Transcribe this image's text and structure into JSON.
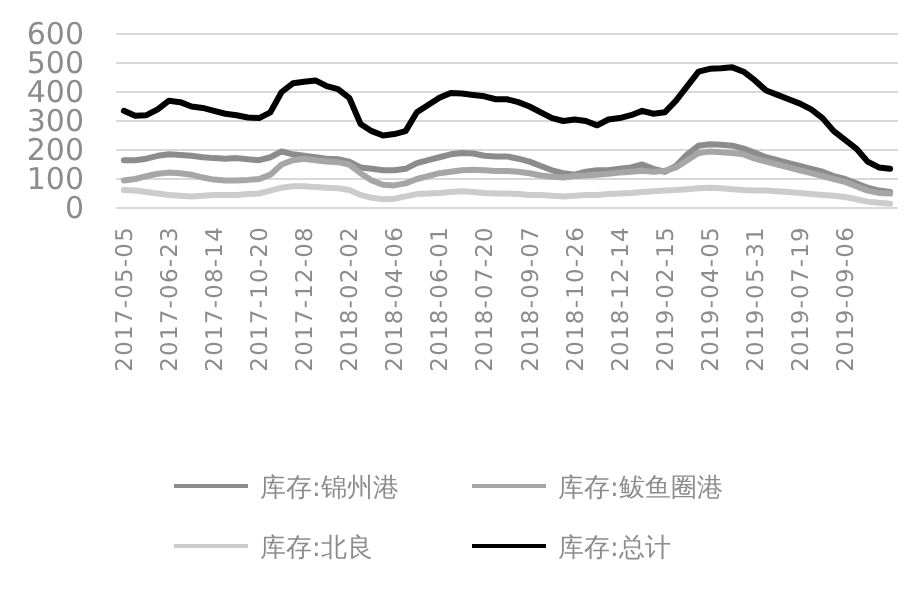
{
  "chart_data": {
    "type": "line",
    "categories": [
      "2017-05-05",
      null,
      null,
      null,
      "2017-06-23",
      null,
      null,
      null,
      "2017-08-14",
      null,
      null,
      null,
      "2017-10-20",
      null,
      null,
      null,
      "2017-12-08",
      null,
      null,
      null,
      "2018-02-02",
      null,
      null,
      null,
      "2018-04-06",
      null,
      null,
      null,
      "2018-06-01",
      null,
      null,
      null,
      "2018-07-20",
      null,
      null,
      null,
      "2018-09-07",
      null,
      null,
      null,
      "2018-10-26",
      null,
      null,
      null,
      "2018-12-14",
      null,
      null,
      null,
      "2019-02-15",
      null,
      null,
      null,
      "2019-04-05",
      null,
      null,
      null,
      "2019-05-31",
      null,
      null,
      null,
      "2019-07-19",
      null,
      null,
      null,
      "2019-09-06",
      null,
      null,
      null,
      null
    ],
    "ylim": [
      0,
      600
    ],
    "yticks": [
      0,
      100,
      200,
      300,
      400,
      500,
      600
    ],
    "grid": "y",
    "legend": "bottom",
    "series": [
      {
        "name": "库存:锦州港",
        "color": "#8c8c8c",
        "values": [
          165,
          165,
          170,
          180,
          185,
          183,
          180,
          175,
          172,
          170,
          172,
          168,
          165,
          175,
          195,
          185,
          180,
          175,
          170,
          168,
          160,
          140,
          135,
          130,
          130,
          135,
          155,
          165,
          175,
          185,
          190,
          188,
          180,
          178,
          178,
          170,
          160,
          145,
          130,
          120,
          115,
          125,
          130,
          130,
          135,
          140,
          150,
          135,
          125,
          145,
          185,
          215,
          220,
          218,
          215,
          205,
          190,
          175,
          165,
          155,
          145,
          135,
          125,
          110,
          100,
          85,
          70,
          60,
          55
        ]
      },
      {
        "name": "库存:鲅鱼圈港",
        "color": "#a6a6a6",
        "values": [
          95,
          100,
          110,
          118,
          122,
          120,
          115,
          105,
          98,
          95,
          95,
          97,
          100,
          115,
          150,
          165,
          170,
          165,
          160,
          158,
          150,
          120,
          95,
          80,
          78,
          85,
          100,
          110,
          120,
          125,
          130,
          132,
          130,
          128,
          128,
          125,
          120,
          112,
          108,
          105,
          110,
          112,
          115,
          118,
          122,
          125,
          128,
          125,
          128,
          140,
          165,
          190,
          195,
          192,
          190,
          185,
          170,
          160,
          150,
          140,
          130,
          120,
          110,
          100,
          90,
          75,
          60,
          52,
          50
        ]
      },
      {
        "name": "库存:北良",
        "color": "#cccccc",
        "values": [
          62,
          60,
          55,
          50,
          45,
          42,
          40,
          42,
          45,
          45,
          45,
          48,
          50,
          60,
          70,
          75,
          75,
          72,
          70,
          68,
          62,
          45,
          35,
          30,
          32,
          40,
          48,
          50,
          52,
          55,
          58,
          55,
          52,
          50,
          50,
          48,
          45,
          45,
          42,
          40,
          42,
          45,
          45,
          48,
          50,
          52,
          55,
          58,
          60,
          62,
          65,
          68,
          70,
          68,
          65,
          62,
          60,
          60,
          58,
          55,
          52,
          48,
          45,
          42,
          38,
          30,
          22,
          18,
          15
        ]
      },
      {
        "name": "库存:总计",
        "color": "#000000",
        "values": [
          335,
          318,
          320,
          340,
          370,
          365,
          350,
          345,
          335,
          325,
          320,
          312,
          310,
          330,
          400,
          430,
          435,
          440,
          420,
          410,
          380,
          290,
          265,
          250,
          255,
          265,
          330,
          355,
          380,
          397,
          395,
          390,
          385,
          375,
          375,
          365,
          350,
          330,
          310,
          300,
          305,
          300,
          285,
          305,
          310,
          320,
          335,
          325,
          330,
          370,
          420,
          470,
          480,
          482,
          485,
          470,
          440,
          405,
          390,
          375,
          360,
          340,
          310,
          265,
          235,
          205,
          160,
          140,
          135
        ]
      }
    ]
  }
}
